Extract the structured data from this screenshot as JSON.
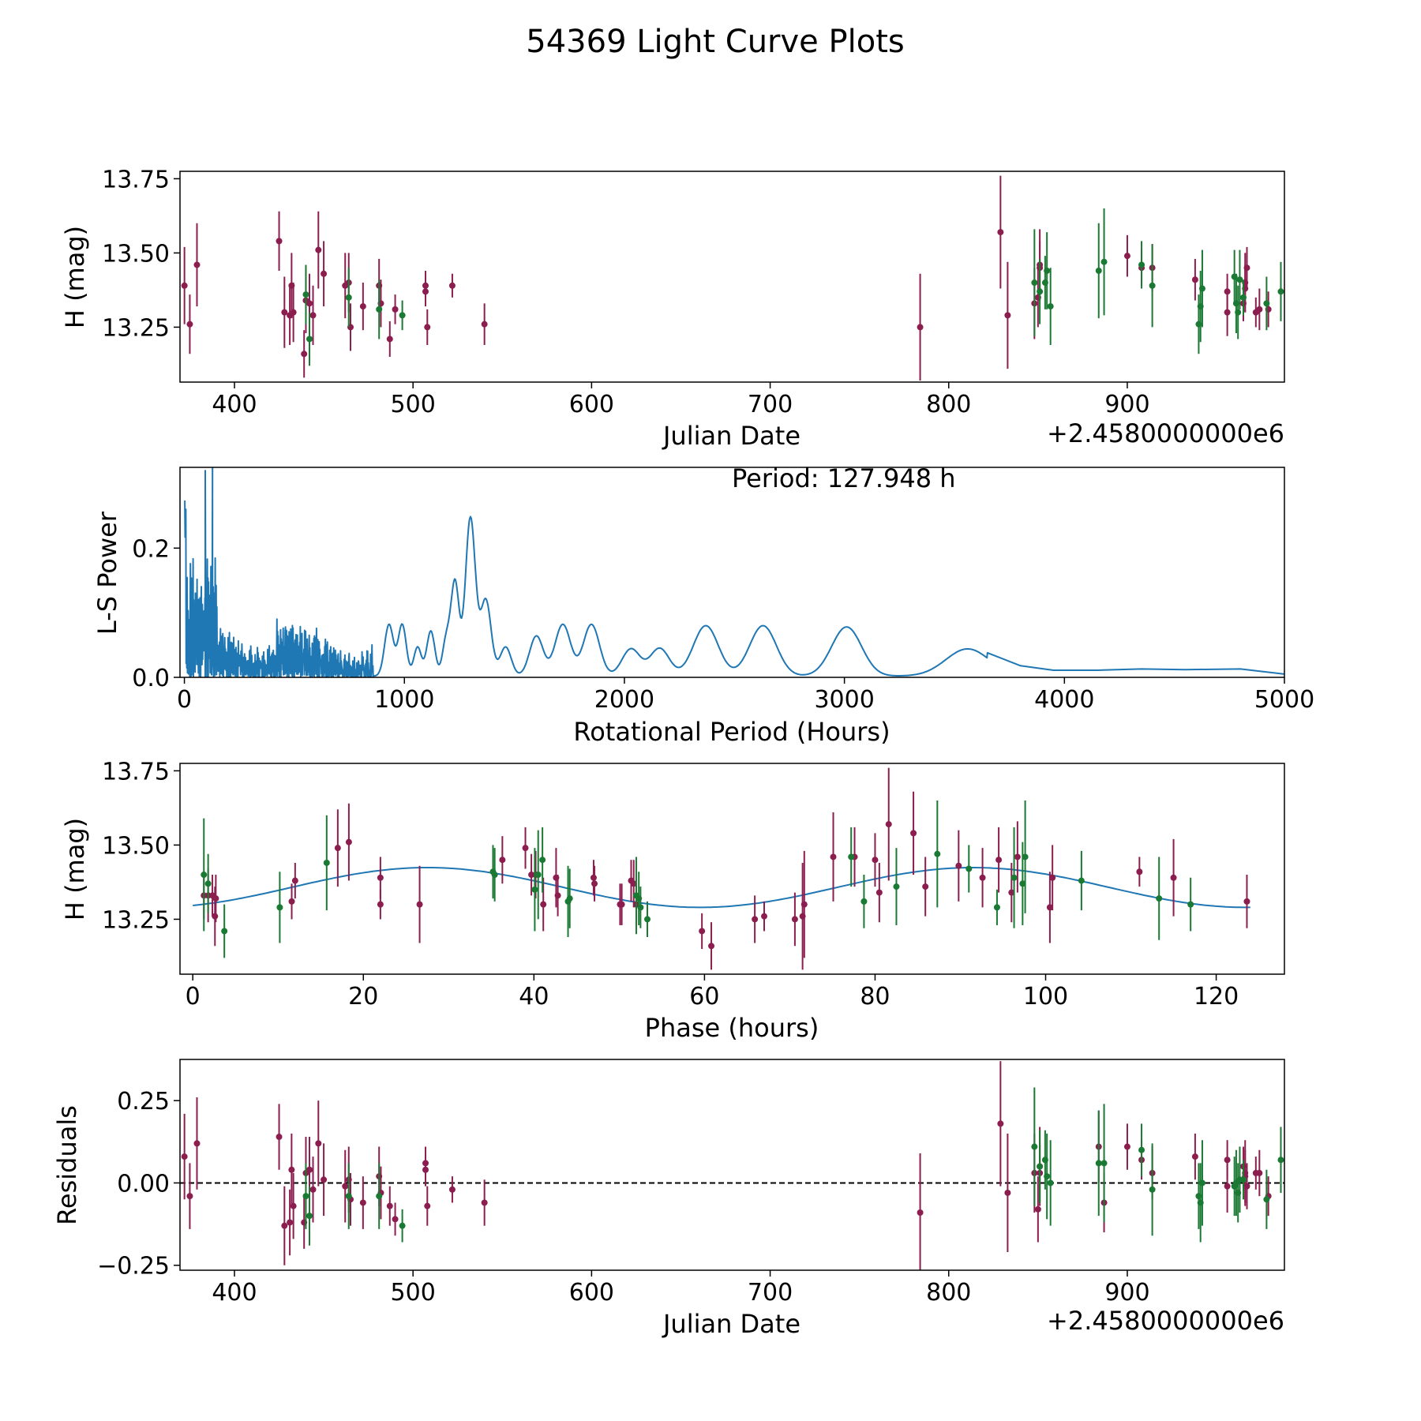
{
  "figure": {
    "title": "54369 Light Curve Plots"
  },
  "colors": {
    "purple": "#8b1e4f",
    "green": "#1a7a33",
    "blue": "#1f77b4",
    "black": "#000000"
  },
  "chart_data": [
    {
      "id": "lc",
      "type": "scatter",
      "xlabel": "Julian Date",
      "ylabel": "H (mag)",
      "offset_text": "+2.4580000000e6",
      "xlim": [
        369.5,
        988
      ],
      "ylim": [
        13.065,
        13.775
      ],
      "xticks": [
        400,
        500,
        600,
        700,
        800,
        900
      ],
      "xtick_labels": [
        "400",
        "500",
        "600",
        "700",
        "800",
        "900"
      ],
      "yticks": [
        13.25,
        13.5,
        13.75
      ],
      "ytick_labels": [
        "13.25",
        "13.50",
        "13.75"
      ],
      "series": [
        {
          "name": "purple-filter",
          "color": "#8b1e4f",
          "x": [
            372,
            375,
            379,
            425,
            428,
            431,
            432,
            433,
            439,
            440,
            442,
            444,
            447,
            450,
            462,
            464,
            465,
            472,
            481,
            482,
            487,
            490,
            507,
            507,
            508,
            522,
            540,
            784,
            829,
            833,
            848,
            850,
            851,
            851,
            900,
            908,
            914,
            938,
            956,
            956,
            965,
            966,
            966,
            967,
            972,
            974,
            979
          ],
          "y": [
            13.39,
            13.26,
            13.46,
            13.54,
            13.3,
            13.29,
            13.39,
            13.3,
            13.16,
            13.34,
            13.33,
            13.29,
            13.51,
            13.43,
            13.39,
            13.4,
            13.25,
            13.32,
            13.39,
            13.33,
            13.21,
            13.31,
            13.39,
            13.37,
            13.25,
            13.39,
            13.26,
            13.25,
            13.57,
            13.29,
            13.33,
            13.35,
            13.46,
            13.45,
            13.49,
            13.45,
            13.45,
            13.41,
            13.3,
            13.37,
            13.33,
            13.38,
            13.4,
            13.45,
            13.3,
            13.31,
            13.31
          ],
          "err": [
            0.13,
            0.1,
            0.14,
            0.1,
            0.12,
            0.1,
            0.11,
            0.1,
            0.08,
            0.11,
            0.1,
            0.1,
            0.13,
            0.11,
            0.11,
            0.1,
            0.08,
            0.08,
            0.09,
            0.08,
            0.06,
            0.05,
            0.05,
            0.05,
            0.06,
            0.04,
            0.07,
            0.18,
            0.19,
            0.18,
            0.12,
            0.1,
            0.12,
            0.09,
            0.07,
            0.06,
            0.08,
            0.07,
            0.08,
            0.06,
            0.06,
            0.08,
            0.1,
            0.07,
            0.05,
            0.07,
            0.06
          ]
        },
        {
          "name": "green-filter",
          "color": "#1a7a33",
          "x": [
            440,
            442,
            464,
            481,
            494,
            848,
            851,
            854,
            855,
            857,
            884,
            887,
            908,
            914,
            940,
            941,
            942,
            960,
            961,
            962,
            963,
            965,
            978,
            986
          ],
          "y": [
            13.36,
            13.21,
            13.35,
            13.31,
            13.29,
            13.4,
            13.37,
            13.4,
            13.44,
            13.32,
            13.44,
            13.47,
            13.46,
            13.39,
            13.26,
            13.32,
            13.38,
            13.42,
            13.33,
            13.3,
            13.41,
            13.35,
            13.33,
            13.37
          ],
          "err": [
            0.1,
            0.09,
            0.1,
            0.1,
            0.05,
            0.18,
            0.11,
            0.09,
            0.13,
            0.13,
            0.16,
            0.18,
            0.08,
            0.14,
            0.1,
            0.12,
            0.13,
            0.09,
            0.1,
            0.09,
            0.1,
            0.06,
            0.09,
            0.1
          ]
        }
      ]
    },
    {
      "id": "ls",
      "type": "line",
      "xlabel": "Rotational Period (Hours)",
      "ylabel": "L-S Power",
      "annotation": "Period: 127.948 h",
      "xlim": [
        -20,
        5000
      ],
      "ylim": [
        0,
        0.325
      ],
      "xticks": [
        0,
        1000,
        2000,
        3000,
        4000,
        5000
      ],
      "xtick_labels": [
        "0",
        "1000",
        "2000",
        "3000",
        "4000",
        "5000"
      ],
      "yticks": [
        0.0,
        0.2
      ],
      "ytick_labels": [
        "0.0",
        "0.2"
      ],
      "peaks": [
        [
          930,
          0.08,
          28
        ],
        [
          990,
          0.08,
          26
        ],
        [
          1060,
          0.045,
          24
        ],
        [
          1120,
          0.07,
          26
        ],
        [
          1190,
          0.055,
          24
        ],
        [
          1230,
          0.145,
          26
        ],
        [
          1300,
          0.245,
          32
        ],
        [
          1370,
          0.118,
          34
        ],
        [
          1460,
          0.045,
          36
        ],
        [
          1600,
          0.062,
          44
        ],
        [
          1720,
          0.08,
          50
        ],
        [
          1850,
          0.08,
          52
        ],
        [
          2030,
          0.042,
          58
        ],
        [
          2160,
          0.043,
          62
        ],
        [
          2370,
          0.078,
          80
        ],
        [
          2630,
          0.078,
          86
        ],
        [
          3010,
          0.076,
          96
        ],
        [
          3560,
          0.042,
          140
        ]
      ],
      "tail": [
        [
          3650,
          0.038
        ],
        [
          3800,
          0.018
        ],
        [
          3950,
          0.011
        ],
        [
          4150,
          0.011
        ],
        [
          4350,
          0.013
        ],
        [
          4550,
          0.012
        ],
        [
          4800,
          0.013
        ],
        [
          5000,
          0.005
        ]
      ]
    },
    {
      "id": "phase",
      "type": "scatter",
      "xlabel": "Phase (hours)",
      "ylabel": "H (mag)",
      "xlim": [
        -1.5,
        128
      ],
      "ylim": [
        13.065,
        13.775
      ],
      "xticks": [
        0,
        20,
        40,
        60,
        80,
        100,
        120
      ],
      "xtick_labels": [
        "0",
        "20",
        "40",
        "60",
        "80",
        "100",
        "120"
      ],
      "yticks": [
        13.25,
        13.5,
        13.75
      ],
      "ytick_labels": [
        "13.25",
        "13.50",
        "13.75"
      ],
      "model": {
        "mean": 13.357,
        "amplitude": 0.067,
        "period": 64.0,
        "phase_of_peak": 27.5
      },
      "series": [
        {
          "name": "purple-filter",
          "color": "#8b1e4f",
          "x": [
            1.3,
            1.8,
            2.3,
            2.6,
            2.7,
            11.6,
            12.0,
            18.3,
            17.0,
            22.0,
            22.0,
            26.6,
            36.3,
            39.0,
            39.7,
            40.2,
            41.1,
            42.6,
            42.8,
            47.0,
            47.1,
            50.1,
            50.3,
            51.4,
            51.7,
            52.0,
            59.7,
            60.8,
            65.9,
            67.0,
            70.6,
            71.5,
            71.7,
            75.1,
            77.6,
            80.0,
            80.5,
            81.6,
            84.5,
            85.9,
            89.8,
            92.6,
            94.5,
            96.0,
            96.7,
            100.5,
            100.8,
            111.0,
            115.0,
            123.6
          ],
          "y": [
            13.33,
            13.33,
            13.33,
            13.26,
            13.32,
            13.31,
            13.38,
            13.51,
            13.49,
            13.39,
            13.3,
            13.3,
            13.45,
            13.49,
            13.4,
            13.4,
            13.3,
            13.39,
            13.33,
            13.39,
            13.37,
            13.3,
            13.3,
            13.38,
            13.37,
            13.3,
            13.21,
            13.16,
            13.25,
            13.26,
            13.25,
            13.26,
            13.3,
            13.46,
            13.46,
            13.45,
            13.34,
            13.57,
            13.54,
            13.36,
            13.43,
            13.39,
            13.45,
            13.34,
            13.46,
            13.29,
            13.39,
            13.41,
            13.39,
            13.31
          ],
          "err": [
            0.08,
            0.09,
            0.07,
            0.1,
            0.08,
            0.06,
            0.06,
            0.13,
            0.13,
            0.07,
            0.05,
            0.13,
            0.08,
            0.07,
            0.07,
            0.08,
            0.09,
            0.1,
            0.07,
            0.06,
            0.06,
            0.07,
            0.07,
            0.07,
            0.08,
            0.07,
            0.06,
            0.08,
            0.08,
            0.05,
            0.09,
            0.18,
            0.18,
            0.15,
            0.1,
            0.09,
            0.1,
            0.19,
            0.14,
            0.1,
            0.12,
            0.1,
            0.11,
            0.1,
            0.12,
            0.12,
            0.11,
            0.05,
            0.13,
            0.09
          ]
        },
        {
          "name": "green-filter",
          "color": "#1a7a33",
          "x": [
            1.3,
            1.8,
            3.7,
            10.2,
            15.7,
            35.2,
            35.4,
            40.1,
            40.5,
            41.0,
            44.0,
            44.2,
            52.0,
            52.3,
            52.5,
            53.3,
            77.2,
            78.7,
            82.5,
            87.3,
            91.0,
            94.3,
            96.3,
            97.3,
            97.6,
            104.2,
            113.3,
            117.0
          ],
          "y": [
            13.4,
            13.37,
            13.21,
            13.29,
            13.44,
            13.41,
            13.4,
            13.35,
            13.4,
            13.45,
            13.31,
            13.32,
            13.33,
            13.32,
            13.29,
            13.25,
            13.46,
            13.31,
            13.36,
            13.47,
            13.42,
            13.29,
            13.39,
            13.37,
            13.46,
            13.38,
            13.32,
            13.3
          ],
          "err": [
            0.19,
            0.1,
            0.09,
            0.12,
            0.16,
            0.09,
            0.09,
            0.14,
            0.15,
            0.11,
            0.12,
            0.1,
            0.13,
            0.09,
            0.07,
            0.06,
            0.1,
            0.09,
            0.13,
            0.18,
            0.08,
            0.06,
            0.17,
            0.14,
            0.19,
            0.1,
            0.14,
            0.09
          ]
        }
      ]
    },
    {
      "id": "res",
      "type": "scatter",
      "xlabel": "Julian Date",
      "ylabel": "Residuals",
      "offset_text": "+2.4580000000e6",
      "xlim": [
        369.5,
        988
      ],
      "ylim": [
        -0.265,
        0.375
      ],
      "xticks": [
        400,
        500,
        600,
        700,
        800,
        900
      ],
      "xtick_labels": [
        "400",
        "500",
        "600",
        "700",
        "800",
        "900"
      ],
      "yticks": [
        -0.25,
        0.0,
        0.25
      ],
      "ytick_labels": [
        "−0.25",
        "0.00",
        "0.25"
      ],
      "zero_line": true,
      "series": [
        {
          "name": "purple-filter",
          "color": "#8b1e4f",
          "x": [
            372,
            375,
            379,
            425,
            428,
            431,
            432,
            433,
            439,
            440,
            442,
            444,
            447,
            450,
            462,
            464,
            465,
            472,
            481,
            482,
            487,
            490,
            507,
            507,
            508,
            522,
            540,
            784,
            829,
            833,
            848,
            850,
            851,
            851,
            884,
            887,
            900,
            908,
            914,
            938,
            956,
            956,
            965,
            966,
            966,
            967,
            972,
            974,
            979
          ],
          "y": [
            0.08,
            -0.04,
            0.12,
            0.14,
            -0.13,
            -0.12,
            0.04,
            -0.07,
            -0.12,
            0.03,
            0.04,
            -0.02,
            0.12,
            0.01,
            -0.01,
            0.01,
            -0.05,
            -0.06,
            0.02,
            -0.03,
            -0.07,
            -0.11,
            0.06,
            0.04,
            -0.07,
            -0.02,
            -0.06,
            -0.09,
            0.18,
            -0.03,
            0.03,
            -0.08,
            0.05,
            0.03,
            0.11,
            -0.06,
            0.11,
            0.07,
            0.03,
            0.08,
            0.07,
            -0.01,
            0.05,
            0.02,
            0.03,
            -0.01,
            0.03,
            0.03,
            -0.04
          ],
          "err": [
            0.13,
            0.1,
            0.14,
            0.1,
            0.12,
            0.1,
            0.11,
            0.1,
            0.08,
            0.11,
            0.1,
            0.1,
            0.13,
            0.11,
            0.11,
            0.1,
            0.08,
            0.08,
            0.09,
            0.08,
            0.06,
            0.05,
            0.05,
            0.05,
            0.06,
            0.04,
            0.07,
            0.18,
            0.19,
            0.18,
            0.12,
            0.1,
            0.12,
            0.09,
            0.11,
            0.09,
            0.07,
            0.06,
            0.08,
            0.07,
            0.06,
            0.08,
            0.06,
            0.08,
            0.1,
            0.07,
            0.05,
            0.07,
            0.06
          ]
        },
        {
          "name": "green-filter",
          "color": "#1a7a33",
          "x": [
            440,
            442,
            464,
            481,
            494,
            848,
            851,
            854,
            855,
            857,
            884,
            887,
            908,
            914,
            940,
            941,
            942,
            960,
            961,
            962,
            963,
            965,
            978,
            986
          ],
          "y": [
            -0.04,
            -0.1,
            -0.04,
            -0.04,
            -0.13,
            0.11,
            0.05,
            0.07,
            0.02,
            0.0,
            0.06,
            0.06,
            0.1,
            -0.02,
            -0.04,
            -0.06,
            0.0,
            -0.01,
            0.0,
            -0.03,
            0.01,
            0.01,
            -0.05,
            0.07
          ],
          "err": [
            0.1,
            0.09,
            0.1,
            0.1,
            0.05,
            0.18,
            0.11,
            0.09,
            0.13,
            0.13,
            0.16,
            0.18,
            0.08,
            0.14,
            0.1,
            0.12,
            0.13,
            0.09,
            0.1,
            0.09,
            0.1,
            0.06,
            0.09,
            0.1
          ]
        }
      ]
    }
  ]
}
